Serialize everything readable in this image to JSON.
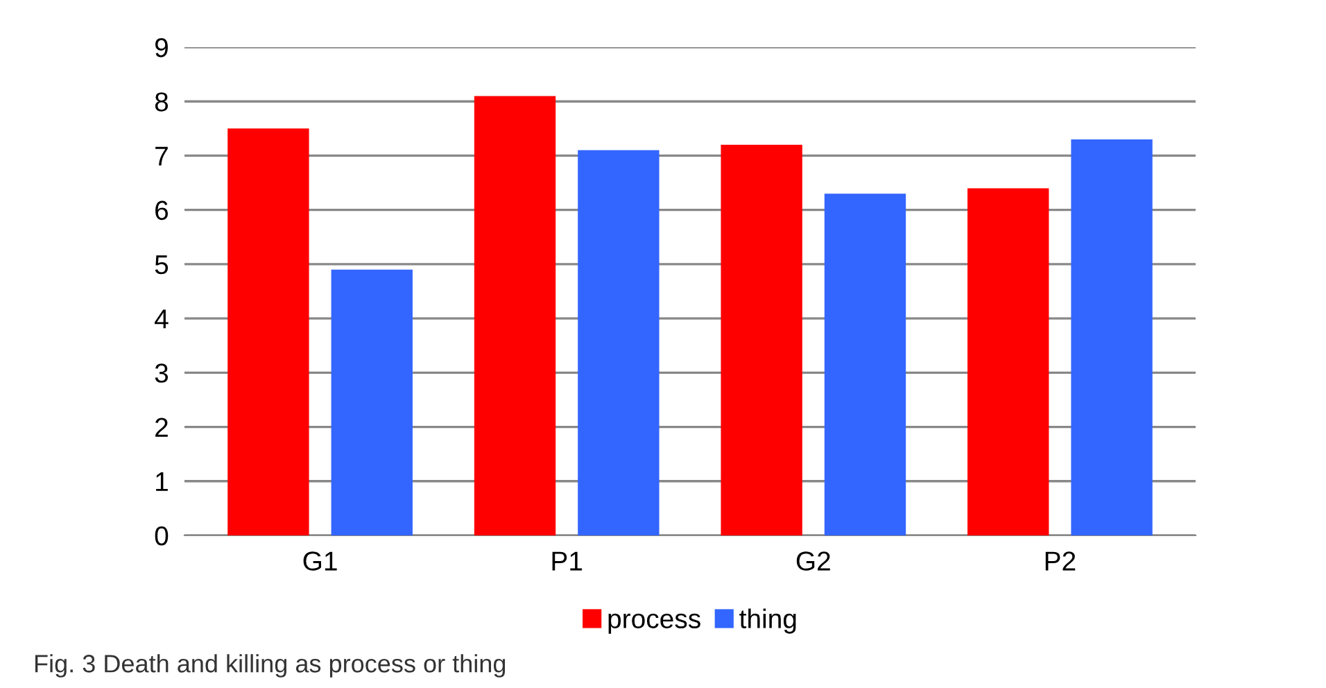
{
  "chart_data": {
    "type": "bar",
    "categories": [
      "G1",
      "P1",
      "G2",
      "P2"
    ],
    "series": [
      {
        "name": "process",
        "color": "#fe0000",
        "values": [
          7.5,
          8.1,
          7.2,
          6.4
        ]
      },
      {
        "name": "thing",
        "color": "#3366ff",
        "values": [
          4.9,
          7.1,
          6.3,
          7.3
        ]
      }
    ],
    "ylim": [
      0,
      9
    ],
    "yticks": [
      0,
      1,
      2,
      3,
      4,
      5,
      6,
      7,
      8,
      9
    ],
    "grid": "y",
    "legend": "bottom",
    "annotations": [
      "Fig. 3 Death and killing as process or thing"
    ]
  }
}
